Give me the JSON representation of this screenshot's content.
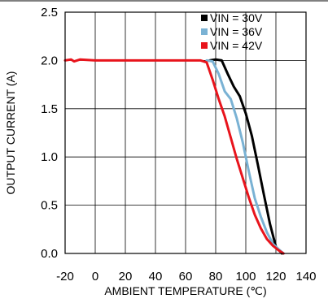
{
  "chart_data": {
    "type": "line",
    "xlabel": "AMBIENT TEMPERATURE (℃)",
    "ylabel": "OUTPUT CURRENT (A)",
    "xlim": [
      -20,
      140
    ],
    "ylim": [
      0,
      2.5
    ],
    "x_ticks": [
      "-20",
      "0",
      "20",
      "40",
      "60",
      "80",
      "100",
      "120",
      "140"
    ],
    "y_ticks": [
      "0.0",
      "0.5",
      "1.0",
      "1.5",
      "2.0",
      "2.5"
    ],
    "grid": true,
    "legend_position": "top-right",
    "series": [
      {
        "name": "VIN = 30V",
        "color": "#000000",
        "x": [
          76,
          80,
          84,
          88,
          92,
          96,
          100,
          104,
          108,
          112,
          116,
          120,
          124
        ],
        "y": [
          2.0,
          2.01,
          2.0,
          1.86,
          1.73,
          1.63,
          1.45,
          1.22,
          0.92,
          0.61,
          0.31,
          0.07,
          0.0
        ]
      },
      {
        "name": "VIN = 36V",
        "color": "#7ab2d4",
        "x": [
          74,
          78,
          82,
          86,
          90,
          94,
          98,
          102,
          106,
          110,
          114,
          118,
          122,
          125
        ],
        "y": [
          2.0,
          1.99,
          1.86,
          1.68,
          1.6,
          1.4,
          1.15,
          0.85,
          0.57,
          0.38,
          0.22,
          0.1,
          0.04,
          0.0
        ]
      },
      {
        "name": "VIN = 42V",
        "color": "#e8141c",
        "x": [
          -20,
          -16,
          -14,
          -10,
          0,
          20,
          40,
          60,
          70,
          74,
          78,
          82,
          86,
          90,
          94,
          98,
          102,
          106,
          110,
          114,
          118,
          122,
          125
        ],
        "y": [
          2.0,
          2.01,
          1.99,
          2.01,
          2.0,
          2.0,
          2.0,
          2.0,
          2.0,
          1.98,
          1.8,
          1.6,
          1.42,
          1.2,
          0.98,
          0.78,
          0.58,
          0.4,
          0.26,
          0.15,
          0.08,
          0.03,
          0.0
        ]
      }
    ]
  }
}
